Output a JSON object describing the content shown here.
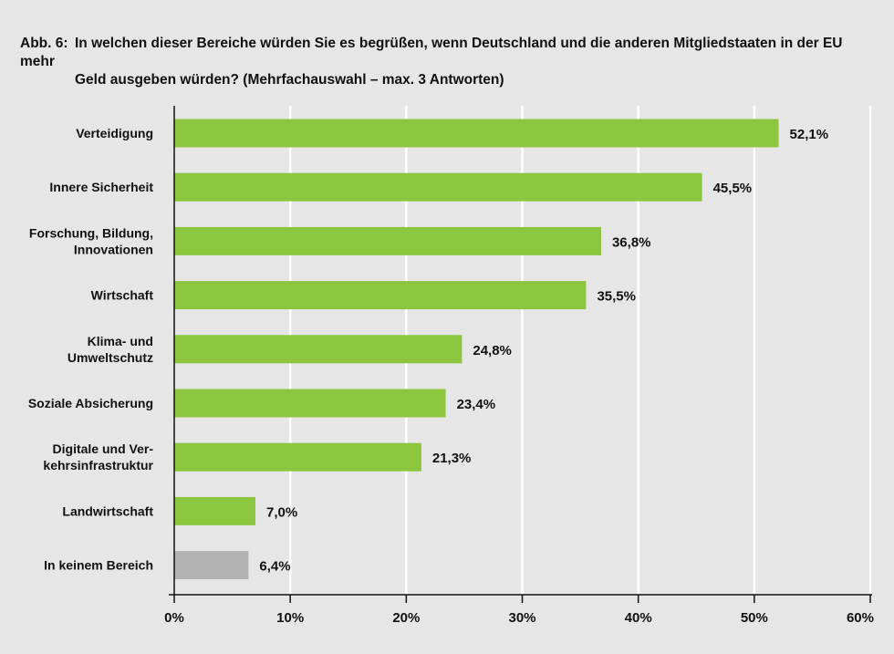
{
  "title": {
    "prefix": "Abb. 6:",
    "line1": "In welchen dieser Bereiche würden Sie es begrüßen, wenn Deutschland und die anderen Mitgliedstaaten in der EU mehr",
    "line2": "Geld ausgeben würden? (Mehrfachauswahl – max. 3 Antworten)"
  },
  "colors": {
    "bar": "#8cc63f",
    "bar_neutral": "#b3b3b3",
    "background": "#e6e6e6",
    "grid": "#ffffff",
    "axis": "#111111"
  },
  "chart_data": {
    "type": "bar",
    "orientation": "horizontal",
    "categories": [
      [
        "Verteidigung"
      ],
      [
        "Innere Sicherheit"
      ],
      [
        "Forschung, Bildung,",
        "Innovationen"
      ],
      [
        "Wirtschaft"
      ],
      [
        "Klima- und",
        "Umweltschutz"
      ],
      [
        "Soziale Absicherung"
      ],
      [
        "Digitale und Ver-",
        "kehrsinfrastruktur"
      ],
      [
        "Landwirtschaft"
      ],
      [
        "In keinem Bereich"
      ]
    ],
    "values": [
      52.1,
      45.5,
      36.8,
      35.5,
      24.8,
      23.4,
      21.3,
      7.0,
      6.4
    ],
    "value_labels": [
      "52,1%",
      "45,5%",
      "36,8%",
      "35,5%",
      "24,8%",
      "23,4%",
      "21,3%",
      "7,0%",
      "6,4%"
    ],
    "bar_colors": [
      "#8cc63f",
      "#8cc63f",
      "#8cc63f",
      "#8cc63f",
      "#8cc63f",
      "#8cc63f",
      "#8cc63f",
      "#8cc63f",
      "#b3b3b3"
    ],
    "xlim": [
      0,
      60
    ],
    "x_ticks": [
      0,
      10,
      20,
      30,
      40,
      50,
      60
    ],
    "x_tick_labels": [
      "0%",
      "10%",
      "20%",
      "30%",
      "40%",
      "50%",
      "60%"
    ],
    "grid": true
  }
}
